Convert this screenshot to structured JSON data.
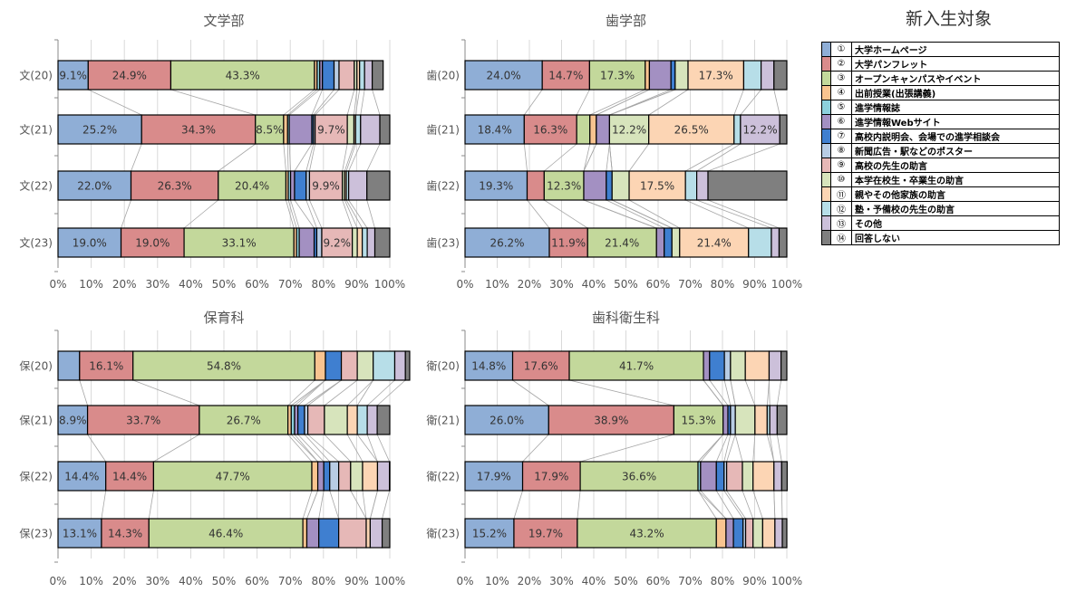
{
  "legend": {
    "title": "新入生対象",
    "items": [
      {
        "num": "①",
        "label": "大学ホームページ",
        "color": "#8faed6"
      },
      {
        "num": "②",
        "label": "大学パンフレット",
        "color": "#d98b8b"
      },
      {
        "num": "③",
        "label": "オープンキャンパスやイベント",
        "color": "#c3d89b"
      },
      {
        "num": "④",
        "label": "出前授業(出張講義)",
        "color": "#f9c490"
      },
      {
        "num": "⑤",
        "label": "進学情報誌",
        "color": "#8cd0dc"
      },
      {
        "num": "⑥",
        "label": "進学情報Webサイト",
        "color": "#a390c2"
      },
      {
        "num": "⑦",
        "label": "高校内説明会、会場での進学相談会",
        "color": "#3f7fd0"
      },
      {
        "num": "⑧",
        "label": "新聞広告・駅などのポスター",
        "color": "#b8cce4"
      },
      {
        "num": "⑨",
        "label": "高校の先生の助言",
        "color": "#e6b8b7"
      },
      {
        "num": "⑩",
        "label": "本学在校生・卒業生の助言",
        "color": "#d7e4bc"
      },
      {
        "num": "⑪",
        "label": "親やその他家族の助言",
        "color": "#fcd5b4"
      },
      {
        "num": "⑫",
        "label": "塾・予備校の先生の助言",
        "color": "#b7dee8"
      },
      {
        "num": "⑬",
        "label": "その他",
        "color": "#ccc0da"
      },
      {
        "num": "⑭",
        "label": "回答しない",
        "color": "#7f7f7f"
      }
    ]
  },
  "chart_data": [
    {
      "type": "bar",
      "stacked": "100%",
      "orientation": "horizontal",
      "title": "文学部",
      "xlim": [
        0,
        100
      ],
      "xticks": [
        "0%",
        "10%",
        "20%",
        "30%",
        "40%",
        "50%",
        "60%",
        "70%",
        "80%",
        "90%",
        "100%"
      ],
      "categories": [
        "文(20)",
        "文(21)",
        "文(22)",
        "文(23)"
      ],
      "rows": [
        [
          9.1,
          24.9,
          43.3,
          0.8,
          0.8,
          0.8,
          3.5,
          1.5,
          4.6,
          0.8,
          0.8,
          1.5,
          2.3,
          3.3
        ],
        [
          25.2,
          34.3,
          8.5,
          1.2,
          0.5,
          6.8,
          0.5,
          0.5,
          9.7,
          2.0,
          0.5,
          1.5,
          5.8,
          3.0
        ],
        [
          22.0,
          26.3,
          20.4,
          0.7,
          0.7,
          1.2,
          3.5,
          1.0,
          9.9,
          0.7,
          0.5,
          0.7,
          5.5,
          6.9
        ],
        [
          19.0,
          19.0,
          33.1,
          0.8,
          0.8,
          4.5,
          0.8,
          1.5,
          9.2,
          1.5,
          1.5,
          1.5,
          2.3,
          4.5
        ]
      ],
      "labels": [
        [
          "9.1%",
          "24.9%",
          "43.3%",
          "",
          "",
          "",
          "",
          "",
          "",
          "",
          "",
          "",
          "",
          ""
        ],
        [
          "25.2%",
          "34.3%",
          "8.5%",
          "",
          "",
          "",
          "",
          "",
          "9.7%",
          "",
          "",
          "",
          "",
          ""
        ],
        [
          "22.0%",
          "26.3%",
          "20.4%",
          "",
          "",
          "",
          "",
          "",
          "9.9%",
          "",
          "",
          "",
          "",
          ""
        ],
        [
          "19.0%",
          "19.0%",
          "33.1%",
          "",
          "",
          "",
          "",
          "",
          "9.2%",
          "",
          "",
          "",
          "",
          ""
        ]
      ]
    },
    {
      "type": "bar",
      "stacked": "100%",
      "orientation": "horizontal",
      "title": "歯学部",
      "xlim": [
        0,
        100
      ],
      "xticks": [
        "0%",
        "10%",
        "20%",
        "30%",
        "40%",
        "50%",
        "60%",
        "70%",
        "80%",
        "90%",
        "100%"
      ],
      "categories": [
        "歯(20)",
        "歯(21)",
        "歯(22)",
        "歯(23)"
      ],
      "rows": [
        [
          24.0,
          14.7,
          17.3,
          1.3,
          0,
          6.7,
          1.3,
          0,
          0,
          4.0,
          17.3,
          5.4,
          4.0,
          4.0
        ],
        [
          18.4,
          16.3,
          4.1,
          2.0,
          0,
          4.1,
          0,
          0,
          0,
          12.2,
          26.5,
          2.0,
          12.2,
          2.2
        ],
        [
          19.3,
          5.3,
          12.3,
          0,
          0,
          7.0,
          1.8,
          0,
          0,
          5.3,
          17.5,
          3.5,
          3.5,
          24.5
        ],
        [
          26.2,
          11.9,
          21.4,
          0,
          0,
          2.4,
          2.4,
          0,
          0,
          2.4,
          21.4,
          7.1,
          2.4,
          2.4
        ]
      ],
      "labels": [
        [
          "24.0%",
          "14.7%",
          "17.3%",
          "",
          "",
          "",
          "",
          "",
          "",
          "",
          "17.3%",
          "",
          "",
          ""
        ],
        [
          "18.4%",
          "16.3%",
          "",
          "",
          "",
          "",
          "",
          "",
          "",
          "12.2%",
          "26.5%",
          "",
          "12.2%",
          ""
        ],
        [
          "19.3%",
          "",
          "12.3%",
          "",
          "",
          "",
          "",
          "",
          "",
          "",
          "17.5%",
          "",
          "",
          ""
        ],
        [
          "26.2%",
          "11.9%",
          "21.4%",
          "",
          "",
          "",
          "",
          "",
          "",
          "",
          "21.4%",
          "",
          "",
          ""
        ]
      ]
    },
    {
      "type": "bar",
      "stacked": "100%",
      "orientation": "horizontal",
      "title": "保育科",
      "xlim": [
        0,
        100
      ],
      "xticks": [
        "0%",
        "10%",
        "20%",
        "30%",
        "40%",
        "50%",
        "60%",
        "70%",
        "80%",
        "90%",
        "100%"
      ],
      "categories": [
        "保(20)",
        "保(21)",
        "保(22)",
        "保(23)"
      ],
      "rows": [
        [
          6.5,
          16.1,
          54.8,
          3.2,
          0,
          0,
          4.8,
          0,
          4.8,
          4.8,
          0,
          6.5,
          3.2,
          1.3
        ],
        [
          8.9,
          33.7,
          26.7,
          1.0,
          1.0,
          1.0,
          2.0,
          1.0,
          5.0,
          6.9,
          3.0,
          3.0,
          3.0,
          3.8
        ],
        [
          14.4,
          14.4,
          47.7,
          1.8,
          0,
          1.8,
          1.8,
          2.7,
          3.6,
          3.6,
          4.5,
          0,
          3.6,
          0.1
        ],
        [
          13.1,
          14.3,
          46.4,
          1.2,
          0,
          3.6,
          6.0,
          0,
          8.3,
          0,
          1.2,
          0,
          3.6,
          2.3
        ]
      ],
      "labels": [
        [
          "",
          "16.1%",
          "54.8%",
          "",
          "",
          "",
          "",
          "",
          "",
          "",
          "",
          "",
          "",
          ""
        ],
        [
          "8.9%",
          "33.7%",
          "26.7%",
          "",
          "",
          "",
          "",
          "",
          "",
          "",
          "",
          "",
          "",
          ""
        ],
        [
          "14.4%",
          "14.4%",
          "47.7%",
          "",
          "",
          "",
          "",
          "",
          "",
          "",
          "",
          "",
          "",
          ""
        ],
        [
          "13.1%",
          "14.3%",
          "46.4%",
          "",
          "",
          "",
          "",
          "",
          "",
          "",
          "",
          "",
          "",
          ""
        ]
      ]
    },
    {
      "type": "bar",
      "stacked": "100%",
      "orientation": "horizontal",
      "title": "歯科衛生科",
      "xlim": [
        0,
        100
      ],
      "xticks": [
        "0%",
        "10%",
        "20%",
        "30%",
        "40%",
        "50%",
        "60%",
        "70%",
        "80%",
        "90%",
        "100%"
      ],
      "categories": [
        "衛(20)",
        "衛(21)",
        "衛(22)",
        "衛(23)"
      ],
      "rows": [
        [
          14.8,
          17.6,
          41.7,
          0,
          0,
          1.9,
          4.6,
          1.9,
          0,
          4.6,
          7.4,
          0,
          3.7,
          1.8
        ],
        [
          26.0,
          38.9,
          15.3,
          0,
          0,
          1.5,
          0.8,
          1.5,
          0,
          6.1,
          3.8,
          0.8,
          2.3,
          3.0
        ],
        [
          17.9,
          17.9,
          36.6,
          0,
          0.8,
          4.9,
          2.4,
          0.8,
          4.9,
          3.3,
          6.5,
          0,
          2.4,
          1.7
        ],
        [
          15.2,
          19.7,
          43.2,
          3.0,
          0,
          2.3,
          3.0,
          0.8,
          2.3,
          3.0,
          3.8,
          0,
          2.3,
          1.4
        ]
      ],
      "labels": [
        [
          "14.8%",
          "17.6%",
          "41.7%",
          "",
          "",
          "",
          "",
          "",
          "",
          "",
          "",
          "",
          "",
          ""
        ],
        [
          "26.0%",
          "38.9%",
          "15.3%",
          "",
          "",
          "",
          "",
          "",
          "",
          "",
          "",
          "",
          "",
          ""
        ],
        [
          "17.9%",
          "17.9%",
          "36.6%",
          "",
          "",
          "",
          "",
          "",
          "",
          "",
          "",
          "",
          "",
          ""
        ],
        [
          "15.2%",
          "19.7%",
          "43.2%",
          "",
          "",
          "",
          "",
          "",
          "",
          "",
          "",
          "",
          "",
          ""
        ]
      ]
    }
  ]
}
